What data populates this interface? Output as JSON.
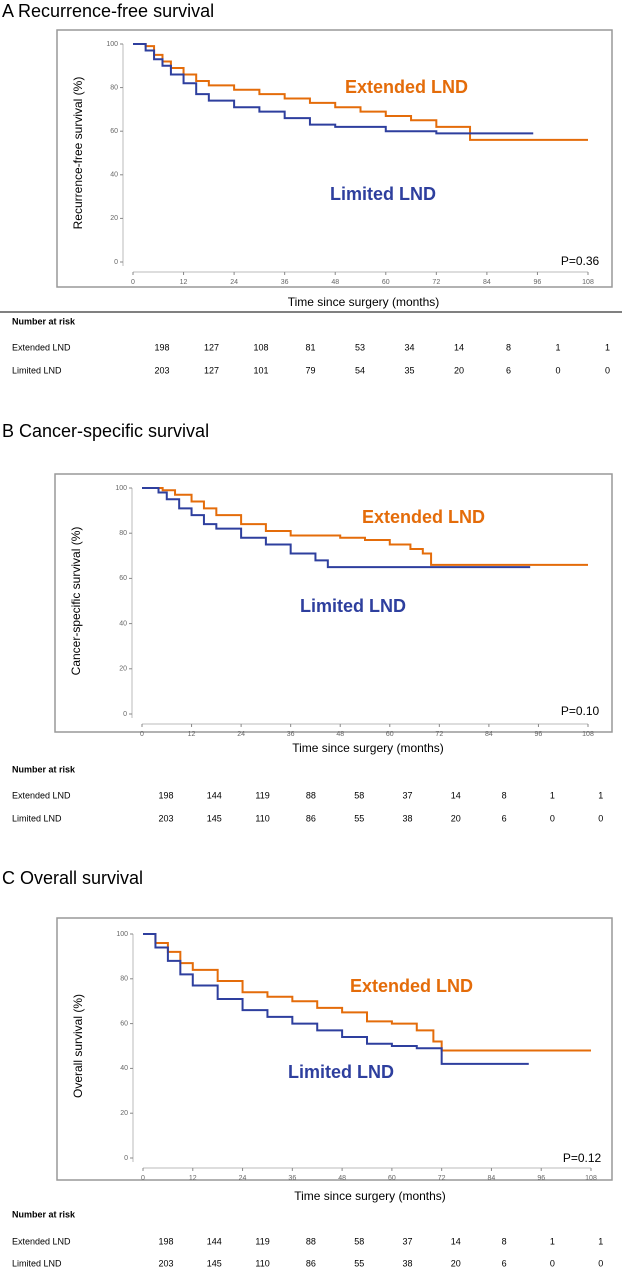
{
  "chart_data": [
    {
      "type": "line",
      "title": "A Recurrence-free survival",
      "xlabel": "Time since surgery (months)",
      "ylabel": "Recurrence-free survival  (%)",
      "annotation": "P=0.36",
      "xlim": [
        0,
        108
      ],
      "ylim": [
        0,
        100
      ],
      "xticks": [
        0,
        12,
        24,
        36,
        48,
        60,
        72,
        84,
        96,
        108
      ],
      "yticks": [
        0,
        20,
        40,
        60,
        80,
        100
      ],
      "series": [
        {
          "name": "Extended LND",
          "color": "#e46c0a",
          "x": [
            0,
            3,
            5,
            7,
            9,
            12,
            15,
            18,
            24,
            30,
            36,
            42,
            48,
            54,
            60,
            66,
            72,
            80,
            108
          ],
          "values": [
            100,
            99,
            95,
            92,
            89,
            86,
            83,
            81,
            79,
            77,
            75,
            73,
            71,
            69,
            67,
            65,
            62,
            56,
            56
          ]
        },
        {
          "name": "Limited LND",
          "color": "#2e3f9e",
          "x": [
            0,
            3,
            5,
            7,
            9,
            12,
            15,
            18,
            24,
            30,
            36,
            42,
            48,
            60,
            72,
            95
          ],
          "values": [
            100,
            97,
            93,
            90,
            86,
            82,
            77,
            74,
            71,
            69,
            66,
            63,
            62,
            60,
            59,
            59
          ]
        }
      ],
      "risk_table": {
        "title": "Number at risk",
        "rows": [
          {
            "label": "Extended LND",
            "values": [
              198,
              127,
              108,
              81,
              53,
              34,
              14,
              8,
              1,
              1
            ]
          },
          {
            "label": "Limited LND",
            "values": [
              203,
              127,
              101,
              79,
              54,
              35,
              20,
              6,
              0,
              0
            ]
          }
        ]
      }
    },
    {
      "type": "line",
      "title": "B Cancer-specific survival",
      "xlabel": "Time since surgery (months)",
      "ylabel": "Cancer-specific survival  (%)",
      "annotation": "P=0.10",
      "xlim": [
        0,
        108
      ],
      "ylim": [
        0,
        100
      ],
      "xticks": [
        0,
        12,
        24,
        36,
        48,
        60,
        72,
        84,
        96,
        108
      ],
      "yticks": [
        0,
        20,
        40,
        60,
        80,
        100
      ],
      "series": [
        {
          "name": "Extended LND",
          "color": "#e46c0a",
          "x": [
            0,
            5,
            8,
            12,
            15,
            18,
            24,
            30,
            36,
            48,
            54,
            60,
            65,
            68,
            70,
            108
          ],
          "values": [
            100,
            99,
            97,
            94,
            91,
            88,
            84,
            81,
            79,
            78,
            77,
            75,
            73,
            71,
            66,
            66
          ]
        },
        {
          "name": "Limited LND",
          "color": "#2e3f9e",
          "x": [
            0,
            4,
            6,
            9,
            12,
            15,
            18,
            24,
            30,
            36,
            42,
            45,
            94
          ],
          "values": [
            100,
            98,
            95,
            91,
            88,
            84,
            82,
            78,
            75,
            71,
            68,
            65,
            65
          ]
        }
      ],
      "risk_table": {
        "title": "Number at risk",
        "rows": [
          {
            "label": "Extended LND",
            "values": [
              198,
              144,
              119,
              88,
              58,
              37,
              14,
              8,
              1,
              1
            ]
          },
          {
            "label": "Limited LND",
            "values": [
              203,
              145,
              110,
              86,
              55,
              38,
              20,
              6,
              0,
              0
            ]
          }
        ]
      }
    },
    {
      "type": "line",
      "title": "C Overall survival",
      "xlabel": "Time since surgery (months)",
      "ylabel": "Overall survival (%)",
      "annotation": "P=0.12",
      "xlim": [
        0,
        108
      ],
      "ylim": [
        0,
        100
      ],
      "xticks": [
        0,
        12,
        24,
        36,
        48,
        60,
        72,
        84,
        96,
        108
      ],
      "yticks": [
        0,
        20,
        40,
        60,
        80,
        100
      ],
      "series": [
        {
          "name": "Extended LND",
          "color": "#e46c0a",
          "x": [
            0,
            3,
            6,
            9,
            12,
            18,
            24,
            30,
            36,
            42,
            48,
            54,
            60,
            66,
            70,
            72,
            108
          ],
          "values": [
            100,
            96,
            92,
            87,
            84,
            79,
            74,
            72,
            70,
            67,
            65,
            61,
            60,
            57,
            52,
            48,
            48
          ]
        },
        {
          "name": "Limited LND",
          "color": "#2e3f9e",
          "x": [
            0,
            3,
            6,
            9,
            12,
            18,
            24,
            30,
            36,
            42,
            48,
            54,
            60,
            66,
            72,
            93
          ],
          "values": [
            100,
            94,
            88,
            82,
            77,
            71,
            66,
            63,
            60,
            57,
            54,
            51,
            50,
            49,
            42,
            42
          ]
        }
      ],
      "risk_table": {
        "title": "Number at risk",
        "rows": [
          {
            "label": "Extended LND",
            "values": [
              198,
              144,
              119,
              88,
              58,
              37,
              14,
              8,
              1,
              1
            ]
          },
          {
            "label": "Limited LND",
            "values": [
              203,
              145,
              110,
              86,
              55,
              38,
              20,
              6,
              0,
              0
            ]
          }
        ]
      }
    }
  ]
}
